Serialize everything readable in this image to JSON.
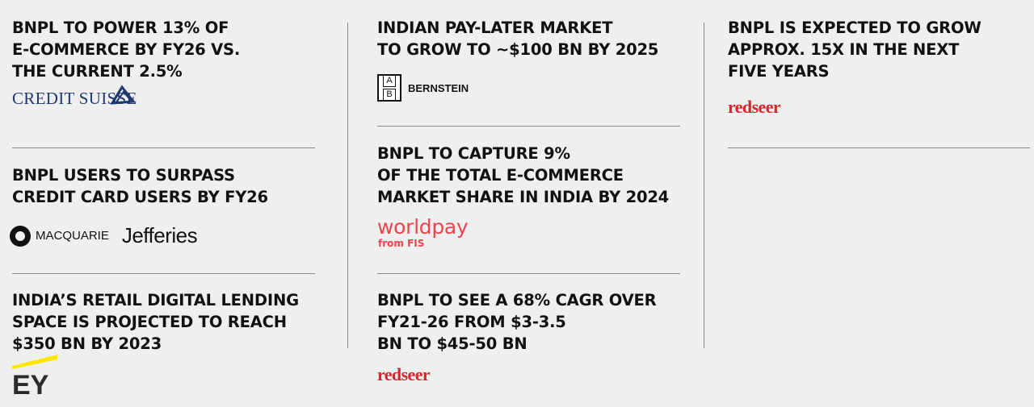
{
  "column1": {
    "stat1": {
      "text": "BNPL TO POWER 13% OF\nE-COMMERCE BY FY26 VS.\nTHE CURRENT 2.5%",
      "logo": "CREDIT SUISSE"
    },
    "stat2": {
      "text": "BNPL USERS TO SURPASS\nCREDIT CARD USERS BY FY26",
      "logo1": "MACQUARIE",
      "logo2": "Jefferies"
    },
    "stat3": {
      "text": "INDIA’S RETAIL DIGITAL LENDING\nSPACE IS PROJECTED TO REACH\n$350 BN BY 2023",
      "logo": "EY"
    }
  },
  "column2": {
    "stat1": {
      "text": "INDIAN PAY-LATER MARKET\nTO GROW TO ~$100 BN BY 2025",
      "logo_mark_top": "A",
      "logo_mark_bottom": "B",
      "logo": "BERNSTEIN"
    },
    "stat2": {
      "text": "BNPL TO CAPTURE 9%\nOF THE TOTAL E-COMMERCE\nMARKET SHARE IN INDIA BY 2024",
      "logo": "worldpay",
      "logo_sub": "from FIS"
    },
    "stat3": {
      "text": "BNPL TO SEE A 68% CAGR OVER\nFY21-26 FROM $3-3.5\nBN TO $45-50 BN",
      "logo": "redseer"
    }
  },
  "column3": {
    "stat1": {
      "text": "BNPL IS EXPECTED TO GROW\nAPPROX. 15X IN THE NEXT\nFIVE YEARS",
      "logo": "redseer"
    }
  },
  "colors": {
    "background": "#efefef",
    "text": "#111111",
    "credit_suisse": "#1f3a6e",
    "worldpay": "#e8464c",
    "redseer": "#d7262c",
    "ey_yellow": "#ffe600"
  }
}
